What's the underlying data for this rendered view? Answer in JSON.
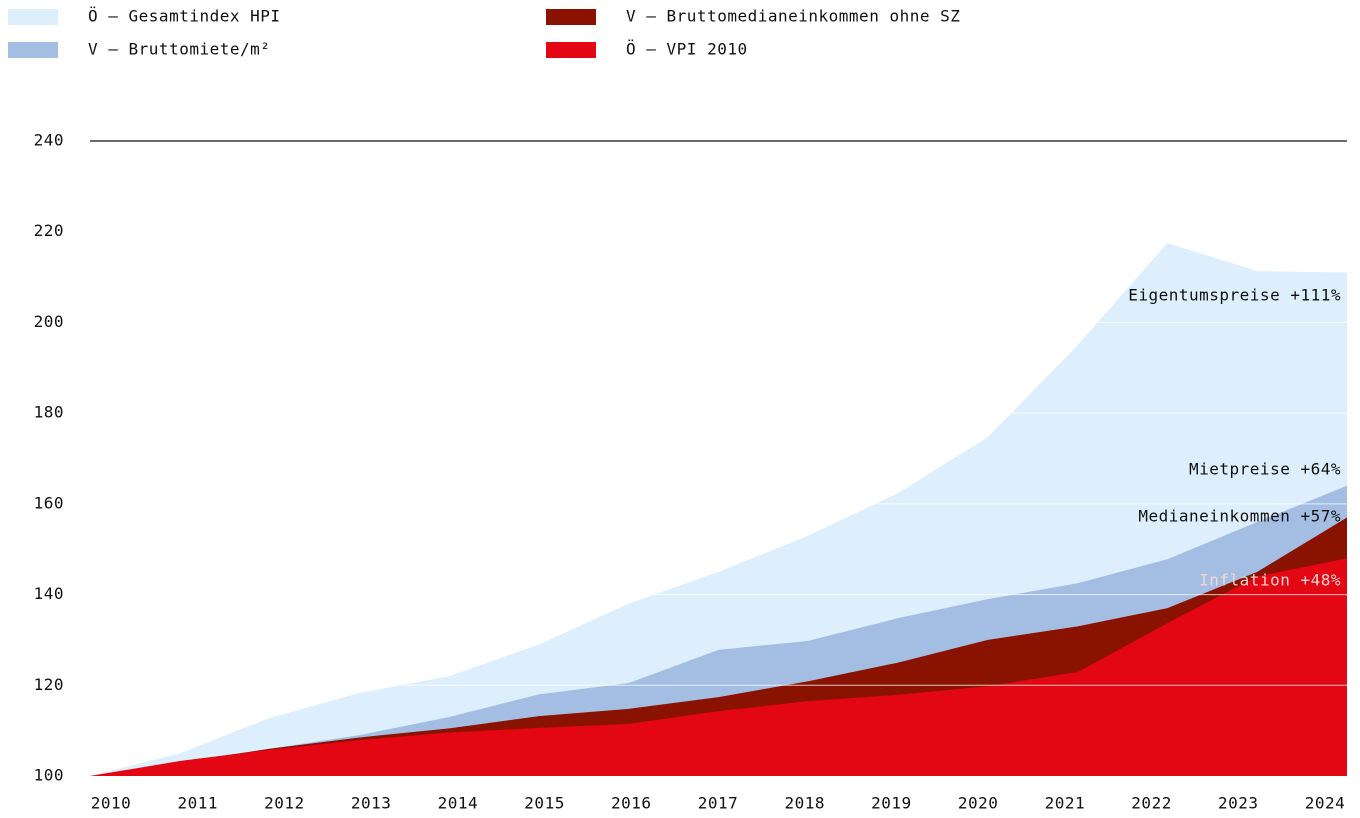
{
  "chart_data": {
    "type": "area",
    "categories": [
      "2010",
      "2011",
      "2012",
      "2013",
      "2014",
      "2015",
      "2016",
      "2017",
      "2018",
      "2019",
      "2020",
      "2021",
      "2022",
      "2023",
      "2024"
    ],
    "series": [
      {
        "name": "Ö – Gesamtindex HPI",
        "color": "#ddeffc",
        "values": [
          100,
          105,
          112.8,
          118.3,
          122,
          129,
          138,
          145,
          153,
          162.4,
          174.7,
          195,
          217.5,
          211.3,
          211
        ]
      },
      {
        "name": "V – Bruttomiete/m²",
        "color": "#a4bde3",
        "values": [
          100,
          103,
          106,
          109,
          113,
          118,
          120.5,
          127.8,
          129.8,
          134.8,
          139,
          142.5,
          147.8,
          156,
          164
        ]
      },
      {
        "name": "V – Bruttomedianeinkommen ohne SZ",
        "color": "#8a1200",
        "values": [
          100,
          103,
          106,
          108.5,
          110.5,
          113.2,
          114.8,
          117.4,
          120.9,
          125,
          130,
          133,
          137,
          145,
          157
        ]
      },
      {
        "name": "Ö – VPI 2010",
        "color": "#e30613",
        "values": [
          100,
          103.3,
          105.8,
          107.9,
          109.6,
          110.6,
          111.5,
          114.3,
          116.5,
          117.9,
          119.8,
          122.9,
          133.7,
          144,
          148
        ]
      }
    ],
    "annotations": [
      "Eigentumspreise +111%",
      "Mietpreise +64%",
      "Medianeinkommen +57%",
      "Inflation +48%"
    ],
    "ylim": [
      100,
      240
    ],
    "yticks": [
      100,
      120,
      140,
      160,
      180,
      200,
      220,
      240
    ],
    "grid": true
  }
}
